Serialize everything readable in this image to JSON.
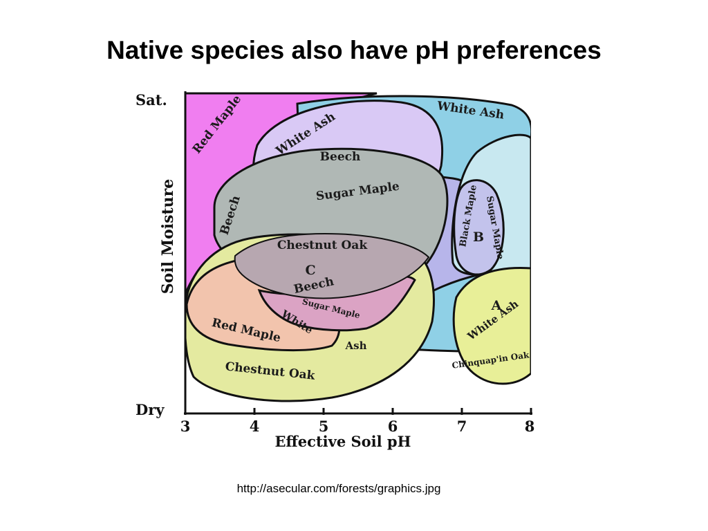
{
  "slide": {
    "title": "Native species also have pH preferences",
    "source": "http://asecular.com/forests/graphics.jpg"
  },
  "axes": {
    "y_label": "Soil Moisture",
    "y_top": "Sat.",
    "y_bottom": "Dry",
    "x_label": "Effective Soil pH",
    "x_ticks": [
      "3",
      "4",
      "5",
      "6",
      "7",
      "8"
    ]
  },
  "labels": {
    "red_maple_top": "Red Maple",
    "white_ash_right": "White Ash",
    "white_ash_center": "White Ash",
    "beech_top": "Beech",
    "beech_left": "Beech",
    "sugar_maple_mid": "Sugar Maple",
    "chestnut_oak_mid": "Chestnut Oak",
    "group_c": "C",
    "beech_low": "Beech",
    "sugar_maple_low": "Sugar Maple",
    "white_low": "White",
    "ash_low": "Ash",
    "red_maple_low": "Red Maple",
    "chestnut_oak_low": "Chestnut Oak",
    "black_maple": "Black Maple",
    "sugar_maple_b": "Sugar Maple",
    "group_b": "B",
    "group_a": "A",
    "white_ash_a": "White Ash",
    "chinquapin_oak": "Chinquap'in Oak"
  },
  "colors": {
    "red_maple_region": "#f07ef0",
    "white_ash_region": "#8fd0e6",
    "white_ash_inner_region": "#d9c9f5",
    "beech_region": "#b0b8b5",
    "sugar_maple_region": "#b7b5ea",
    "chestnut_oak_region": "#e4eaa0",
    "red_maple_low_region": "#f2c4ad",
    "c_region": "#dba3c4",
    "b_region": "#c8e8f0",
    "a_region": "#e8ef98"
  }
}
